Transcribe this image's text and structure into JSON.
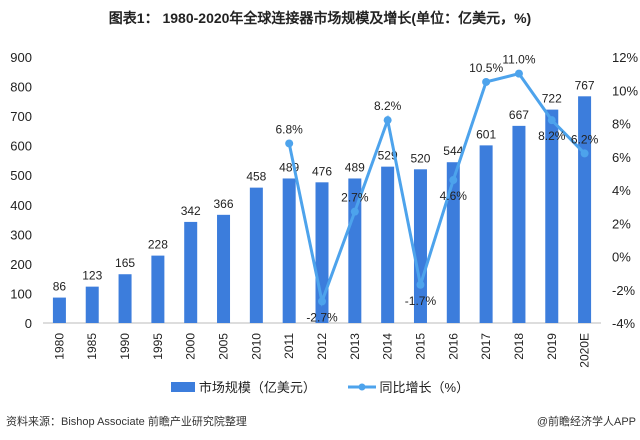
{
  "chart_data": {
    "type": "bar+line",
    "title": "图表1： 1980-2020年全球连接器市场规模及增长(单位：亿美元，%)",
    "categories": [
      "1980",
      "1985",
      "1990",
      "1995",
      "2000",
      "2005",
      "2010",
      "2011",
      "2012",
      "2013",
      "2014",
      "2015",
      "2016",
      "2017",
      "2018",
      "2019",
      "2020E"
    ],
    "series": [
      {
        "name": "市场规模（亿美元）",
        "type": "bar",
        "axis": "left",
        "color": "#3c7ddc",
        "values": [
          86,
          123,
          165,
          228,
          342,
          366,
          458,
          489,
          476,
          489,
          529,
          520,
          544,
          601,
          667,
          722,
          767
        ]
      },
      {
        "name": "同比增长（%）",
        "type": "line",
        "axis": "right",
        "color": "#4da3ec",
        "values": [
          null,
          null,
          null,
          null,
          null,
          null,
          null,
          6.8,
          -2.7,
          2.7,
          8.2,
          -1.7,
          4.6,
          10.5,
          11.0,
          8.2,
          6.2
        ],
        "labels": [
          null,
          null,
          null,
          null,
          null,
          null,
          null,
          "6.8%",
          "-2.7%",
          "2.7%",
          "8.2%",
          "-1.7%",
          "4.6%",
          "10.5%",
          "11.0%",
          "8.2%",
          "6.2%"
        ]
      }
    ],
    "ylim_left": [
      0,
      900
    ],
    "yticks_left": [
      "0",
      "100",
      "200",
      "300",
      "400",
      "500",
      "600",
      "700",
      "800",
      "900"
    ],
    "ylim_right": [
      -4,
      12
    ],
    "yticks_right": [
      "-4%",
      "-2%",
      "0%",
      "2%",
      "4%",
      "6%",
      "8%",
      "10%",
      "12%"
    ],
    "grid": false,
    "legend": "bottom"
  },
  "source": "资料来源：Bishop Associate 前瞻产业研究院整理",
  "credit": "@前瞻经济学人APP"
}
